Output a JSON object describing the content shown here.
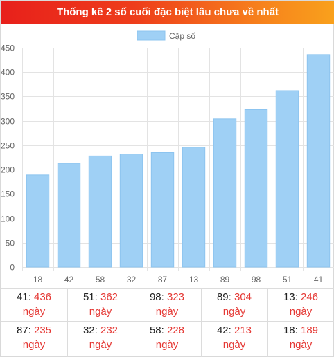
{
  "header": {
    "title": "Thống kê 2 số cuối đặc biệt lâu chưa về nhất"
  },
  "colors": {
    "bar": "#9fd0f5",
    "bar_border": "#8cc4ef",
    "accent": "#e53935",
    "header_start": "#e8201b",
    "header_end": "#f9a11c"
  },
  "chart_data": {
    "type": "bar",
    "categories": [
      "18",
      "42",
      "58",
      "32",
      "87",
      "13",
      "89",
      "98",
      "51",
      "41"
    ],
    "series": [
      {
        "name": "Cặp số",
        "values": [
          189,
          213,
          228,
          232,
          235,
          246,
          304,
          323,
          362,
          436
        ]
      }
    ],
    "ylim": [
      0,
      450
    ],
    "yticks": [
      0,
      50,
      100,
      150,
      200,
      250,
      300,
      350,
      400,
      450
    ],
    "grid": true,
    "legend": "top-center"
  },
  "stats": [
    {
      "pair": "41",
      "days": "436",
      "unit": "ngày"
    },
    {
      "pair": "51",
      "days": "362",
      "unit": "ngày"
    },
    {
      "pair": "98",
      "days": "323",
      "unit": "ngày"
    },
    {
      "pair": "89",
      "days": "304",
      "unit": "ngày"
    },
    {
      "pair": "13",
      "days": "246",
      "unit": "ngày"
    },
    {
      "pair": "87",
      "days": "235",
      "unit": "ngày"
    },
    {
      "pair": "32",
      "days": "232",
      "unit": "ngày"
    },
    {
      "pair": "58",
      "days": "228",
      "unit": "ngày"
    },
    {
      "pair": "42",
      "days": "213",
      "unit": "ngày"
    },
    {
      "pair": "18",
      "days": "189",
      "unit": "ngày"
    }
  ]
}
